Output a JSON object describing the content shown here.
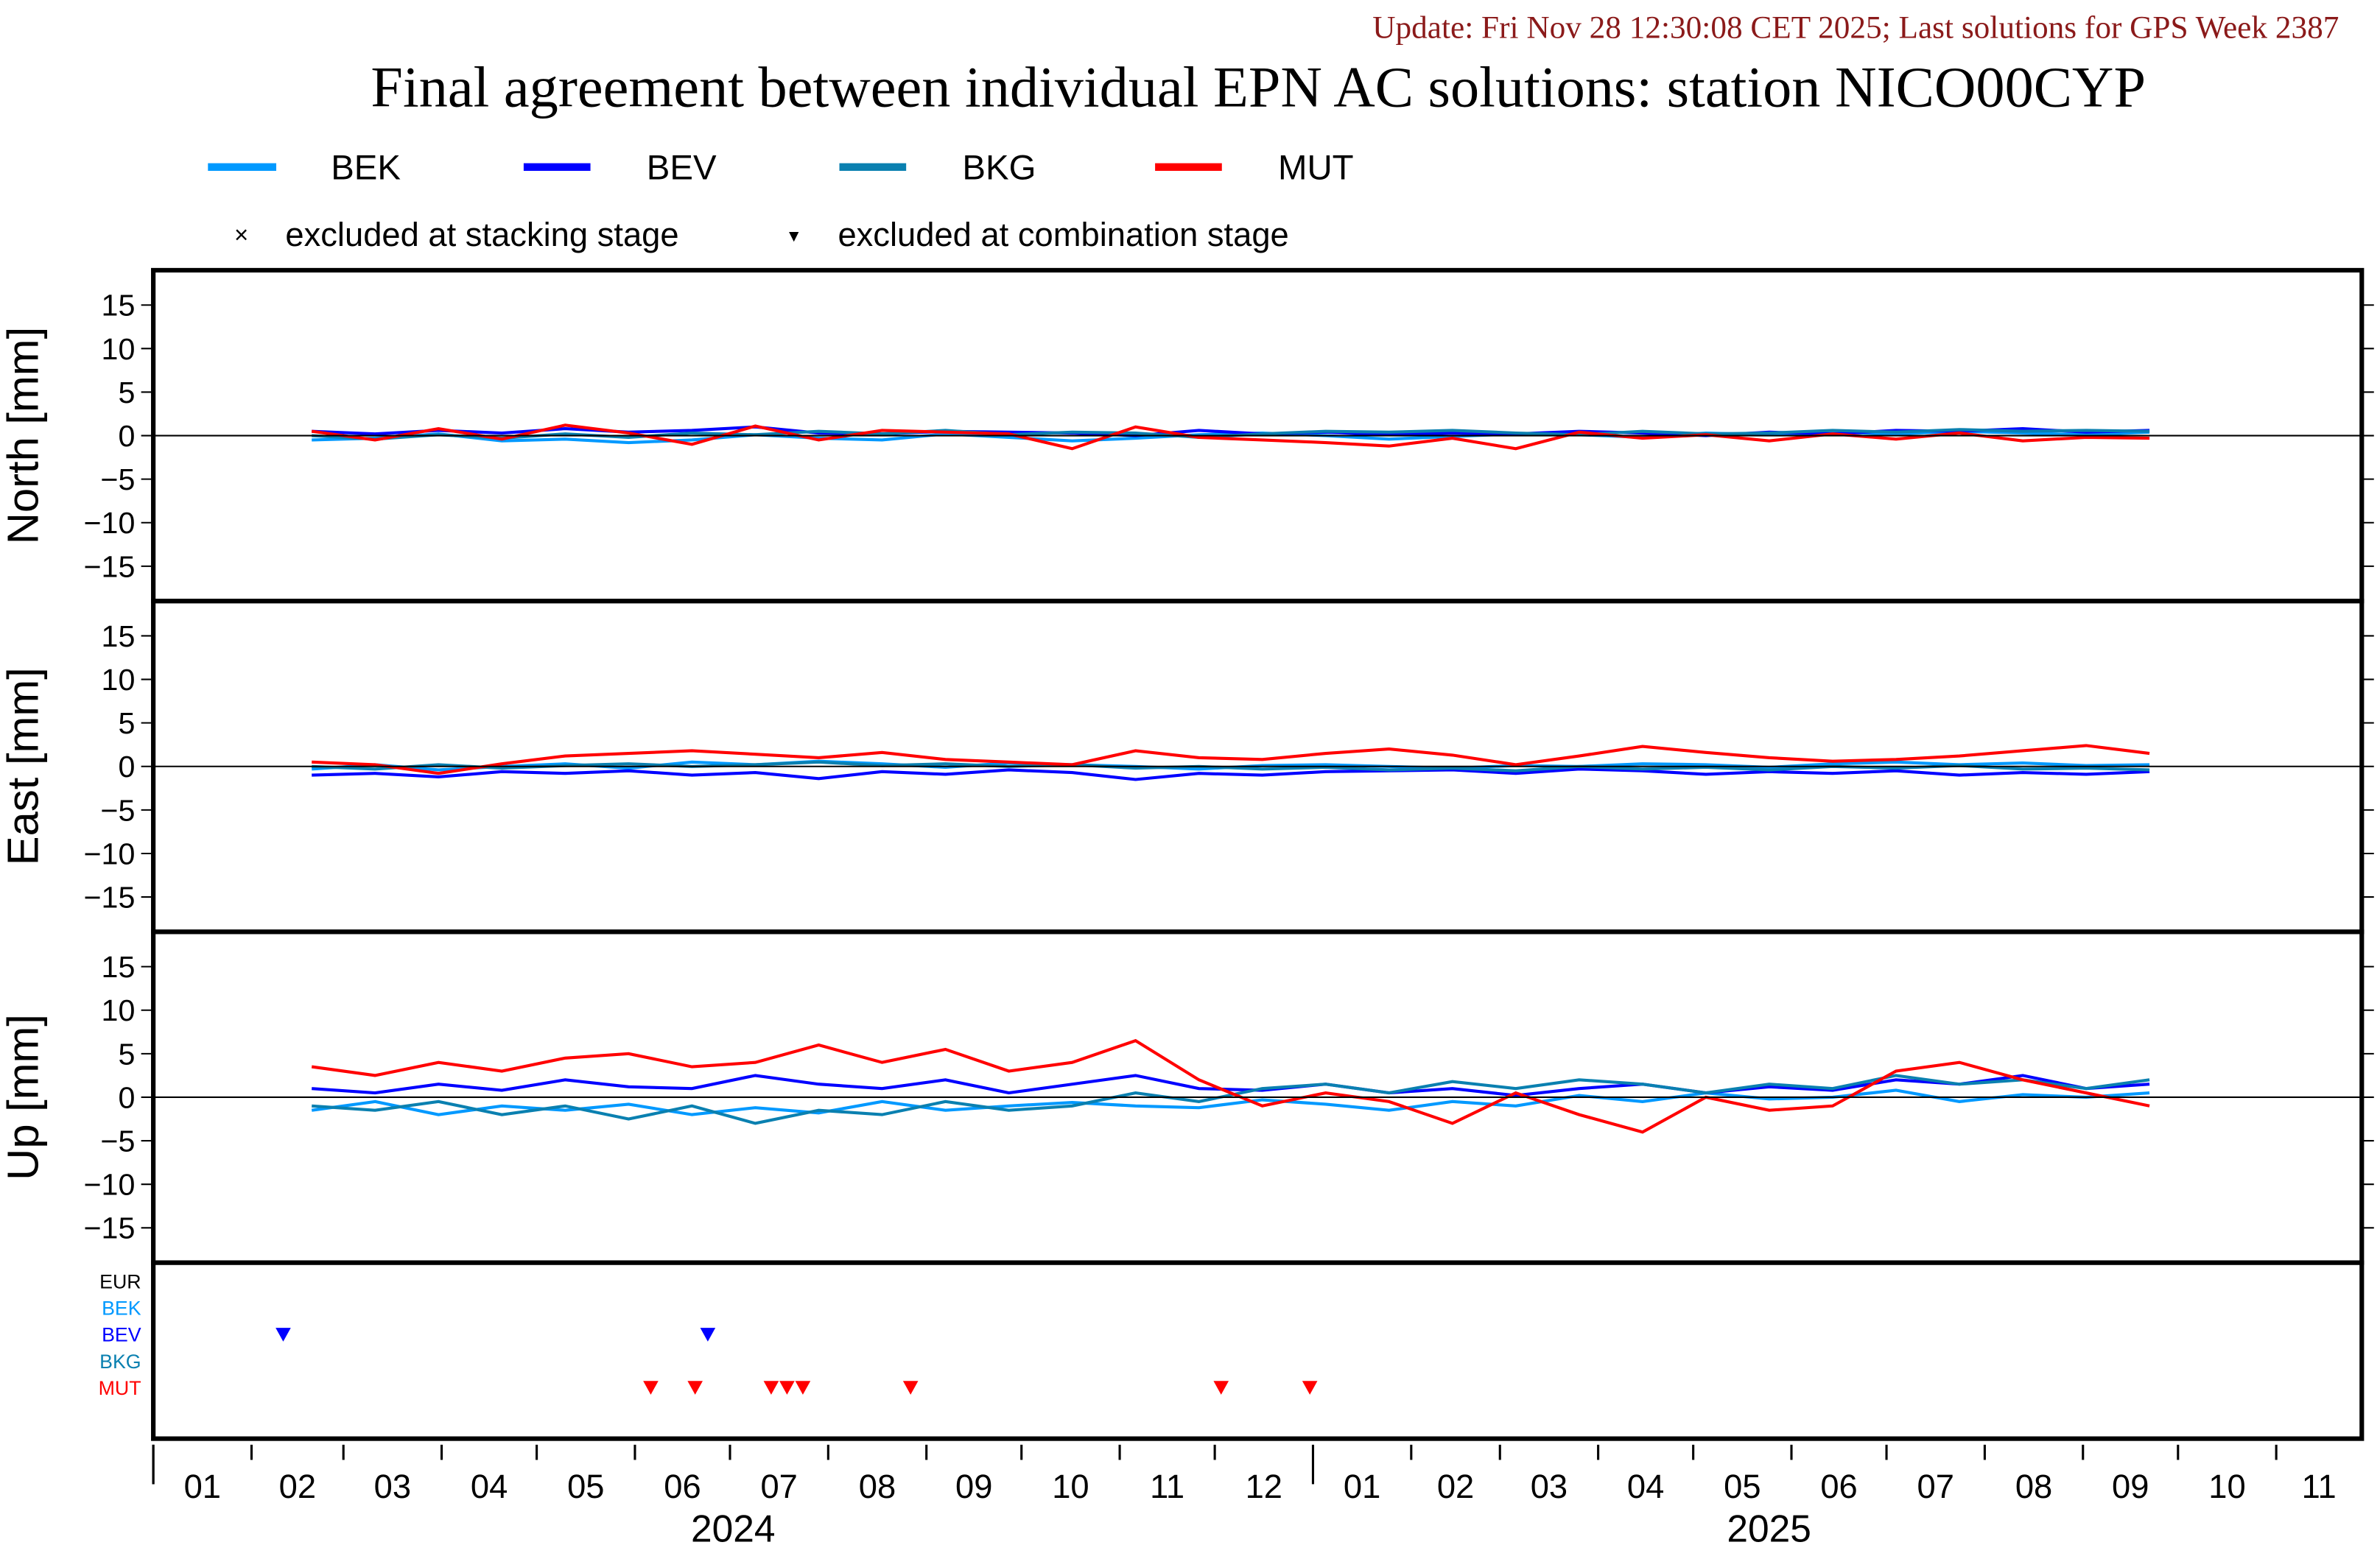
{
  "header": {
    "update": "Update: Fri Nov 28 12:30:08 CET 2025; Last solutions for GPS Week 2387",
    "title": "Final agreement between individual EPN AC solutions: station NICO00CYP"
  },
  "legend": {
    "series": [
      {
        "name": "BEK",
        "color": "#0099ff"
      },
      {
        "name": "BEV",
        "color": "#0000ff"
      },
      {
        "name": "BKG",
        "color": "#0a80b0"
      },
      {
        "name": "MUT",
        "color": "#ff0000"
      }
    ],
    "stacking_symbol": "×",
    "stacking_label": "excluded at stacking stage",
    "combination_symbol": "▼",
    "combination_label": "excluded at combination stage"
  },
  "chart_data": {
    "type": "line",
    "x_start": "2024-01-01",
    "x_end": "2025-11-28",
    "x_tick_labels": [
      "01",
      "02",
      "03",
      "04",
      "05",
      "06",
      "07",
      "08",
      "09",
      "10",
      "11",
      "12",
      "01",
      "02",
      "03",
      "04",
      "05",
      "06",
      "07",
      "08",
      "09",
      "10",
      "11"
    ],
    "year_labels": [
      "2024",
      "2025"
    ],
    "y_ticks": [
      15,
      10,
      5,
      0,
      -5,
      -10,
      -15
    ],
    "ylim": [
      -19,
      19
    ],
    "sample_start_day": 50,
    "sample_step_days": 20,
    "panels": [
      {
        "ylabel": "North [mm]",
        "series": [
          {
            "name": "BEK",
            "values": [
              -0.5,
              -0.3,
              0.2,
              -0.6,
              -0.4,
              -0.8,
              -0.5,
              0.1,
              -0.3,
              -0.5,
              0.2,
              -0.2,
              -0.6,
              -0.3,
              0.1,
              0.3,
              0.0,
              -0.4,
              -0.1,
              0.2,
              0.1,
              -0.2,
              0.3,
              0.1,
              0.4,
              0.2,
              0.5,
              0.3,
              0.1,
              0.4
            ]
          },
          {
            "name": "BEV",
            "values": [
              0.5,
              0.2,
              0.6,
              0.3,
              0.8,
              0.4,
              0.6,
              1.0,
              0.3,
              0.2,
              0.5,
              0.4,
              0.3,
              0.0,
              0.6,
              0.2,
              0.4,
              0.1,
              0.3,
              0.2,
              0.5,
              0.3,
              0.0,
              0.4,
              0.2,
              0.6,
              0.5,
              0.8,
              0.4,
              0.6
            ]
          },
          {
            "name": "BKG",
            "values": [
              0.0,
              -0.4,
              0.1,
              -0.3,
              0.2,
              -0.2,
              0.3,
              0.1,
              0.5,
              0.2,
              0.6,
              0.1,
              0.4,
              0.3,
              -0.2,
              0.2,
              0.5,
              0.4,
              0.6,
              0.3,
              0.1,
              0.5,
              0.2,
              0.3,
              0.6,
              0.4,
              0.7,
              0.5,
              0.6,
              0.5
            ]
          },
          {
            "name": "MUT",
            "values": [
              0.5,
              -0.5,
              0.8,
              -0.4,
              1.2,
              0.3,
              -1.0,
              1.1,
              -0.5,
              0.6,
              0.4,
              0.2,
              -1.5,
              1.0,
              -0.2,
              -0.5,
              -0.8,
              -1.2,
              -0.3,
              -1.5,
              0.4,
              -0.3,
              0.1,
              -0.6,
              0.2,
              -0.4,
              0.3,
              -0.6,
              -0.2,
              -0.3
            ]
          }
        ]
      },
      {
        "ylabel": "East [mm]",
        "series": [
          {
            "name": "BEK",
            "values": [
              -0.3,
              0.2,
              -0.4,
              0.0,
              0.3,
              -0.2,
              0.5,
              0.2,
              0.6,
              0.3,
              -0.1,
              0.4,
              0.2,
              0.0,
              -0.3,
              0.1,
              0.2,
              0.0,
              -0.2,
              0.1,
              0.0,
              0.3,
              0.2,
              -0.1,
              0.3,
              0.5,
              0.2,
              0.4,
              0.1,
              0.2
            ]
          },
          {
            "name": "BEV",
            "values": [
              -1.0,
              -0.8,
              -1.2,
              -0.6,
              -0.8,
              -0.5,
              -1.0,
              -0.7,
              -1.4,
              -0.6,
              -0.9,
              -0.4,
              -0.7,
              -1.5,
              -0.8,
              -1.0,
              -0.6,
              -0.5,
              -0.4,
              -0.8,
              -0.3,
              -0.5,
              -0.9,
              -0.6,
              -0.8,
              -0.5,
              -1.0,
              -0.7,
              -0.9,
              -0.6
            ]
          },
          {
            "name": "BKG",
            "values": [
              0.0,
              -0.3,
              0.2,
              -0.2,
              0.1,
              0.3,
              0.0,
              0.2,
              0.5,
              0.1,
              0.3,
              0.0,
              0.2,
              -0.2,
              0.0,
              -0.3,
              -0.1,
              -0.4,
              -0.2,
              -0.5,
              0.0,
              -0.3,
              -0.1,
              -0.4,
              0.0,
              -0.2,
              0.1,
              -0.3,
              -0.2,
              -0.4
            ]
          },
          {
            "name": "MUT",
            "values": [
              0.5,
              0.2,
              -0.8,
              0.3,
              1.2,
              1.5,
              1.8,
              1.4,
              1.0,
              1.6,
              0.8,
              0.5,
              0.2,
              1.8,
              1.0,
              0.8,
              1.5,
              2.0,
              1.3,
              0.2,
              1.2,
              2.3,
              1.6,
              1.0,
              0.6,
              0.8,
              1.2,
              1.8,
              2.4,
              1.5
            ]
          }
        ]
      },
      {
        "ylabel": "Up [mm]",
        "series": [
          {
            "name": "BEK",
            "values": [
              -1.5,
              -0.5,
              -2.0,
              -1.0,
              -1.5,
              -0.8,
              -2.0,
              -1.2,
              -1.8,
              -0.5,
              -1.5,
              -1.0,
              -0.6,
              -1.0,
              -1.2,
              -0.3,
              -0.8,
              -1.5,
              -0.5,
              -1.0,
              0.2,
              -0.5,
              0.5,
              -0.2,
              0.0,
              0.8,
              -0.5,
              0.3,
              0.0,
              0.5
            ]
          },
          {
            "name": "BEV",
            "values": [
              1.0,
              0.5,
              1.5,
              0.8,
              2.0,
              1.2,
              1.0,
              2.5,
              1.5,
              1.0,
              2.0,
              0.5,
              1.5,
              2.5,
              1.0,
              0.8,
              1.5,
              0.5,
              1.0,
              0.2,
              1.0,
              1.5,
              0.5,
              1.2,
              0.8,
              2.0,
              1.5,
              2.5,
              1.0,
              1.5
            ]
          },
          {
            "name": "BKG",
            "values": [
              -1.0,
              -1.5,
              -0.5,
              -2.0,
              -1.0,
              -2.5,
              -1.0,
              -3.0,
              -1.5,
              -2.0,
              -0.5,
              -1.5,
              -1.0,
              0.5,
              -0.5,
              1.0,
              1.5,
              0.5,
              1.8,
              1.0,
              2.0,
              1.5,
              0.5,
              1.5,
              1.0,
              2.5,
              1.5,
              2.0,
              1.0,
              2.0
            ]
          },
          {
            "name": "MUT",
            "values": [
              3.5,
              2.5,
              4.0,
              3.0,
              4.5,
              5.0,
              3.5,
              4.0,
              6.0,
              4.0,
              5.5,
              3.0,
              4.0,
              6.5,
              2.0,
              -1.0,
              0.5,
              -0.5,
              -3.0,
              0.5,
              -2.0,
              -4.0,
              0.0,
              -1.5,
              -1.0,
              3.0,
              4.0,
              2.0,
              0.5,
              -1.0
            ]
          }
        ]
      }
    ],
    "exclusions": {
      "row_labels": [
        "EUR",
        "BEK",
        "BEV",
        "BKG",
        "MUT"
      ],
      "row_colors": [
        "#000000",
        "#0099ff",
        "#0000ff",
        "#0a80b0",
        "#ff0000"
      ],
      "markers": [
        {
          "ac": "BEV",
          "date": "2024-02-11"
        },
        {
          "ac": "BEV",
          "date": "2024-06-24"
        },
        {
          "ac": "MUT",
          "date": "2024-06-06"
        },
        {
          "ac": "MUT",
          "date": "2024-06-20"
        },
        {
          "ac": "MUT",
          "date": "2024-07-14"
        },
        {
          "ac": "MUT",
          "date": "2024-07-19"
        },
        {
          "ac": "MUT",
          "date": "2024-07-24"
        },
        {
          "ac": "MUT",
          "date": "2024-08-27"
        },
        {
          "ac": "MUT",
          "date": "2024-12-03"
        },
        {
          "ac": "MUT",
          "date": "2024-12-31"
        }
      ]
    }
  }
}
